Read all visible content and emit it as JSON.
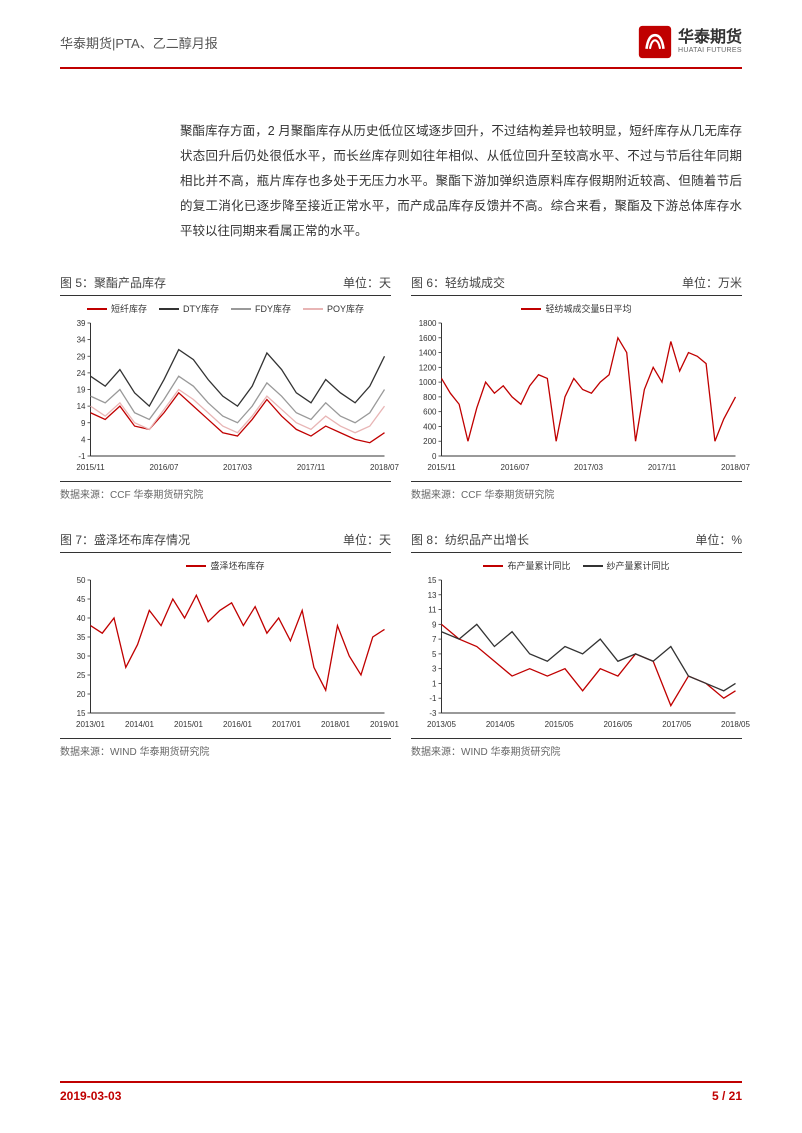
{
  "header": {
    "left": "华泰期货|PTA、乙二醇月报",
    "logo_cn": "华泰期货",
    "logo_en": "HUATAI FUTURES"
  },
  "paragraph": "聚酯库存方面，2 月聚酯库存从历史低位区域逐步回升，不过结构差异也较明显，短纤库存从几无库存状态回升后仍处很低水平，而长丝库存则如往年相似、从低位回升至较高水平、不过与节后往年同期相比并不高，瓶片库存也多处于无压力水平。聚酯下游加弹织造原料库存假期附近较高、但随着节后的复工消化已逐步降至接近正常水平，而产成品库存反馈并不高。综合来看，聚酯及下游总体库存水平较以往同期来看属正常的水平。",
  "charts": {
    "c5": {
      "title": "图 5：聚酯产品库存",
      "unit": "单位：天",
      "legend": [
        {
          "label": "短纤库存",
          "color": "#c00000"
        },
        {
          "label": "DTY库存",
          "color": "#333333"
        },
        {
          "label": "FDY库存",
          "color": "#999999"
        },
        {
          "label": "POY库存",
          "color": "#e8b5b5"
        }
      ],
      "yticks": [
        -1,
        4,
        9,
        14,
        19,
        24,
        29,
        34,
        39
      ],
      "xticks": [
        "2015/11",
        "2016/07",
        "2017/03",
        "2017/11",
        "2018/07"
      ],
      "xlim": [
        0,
        100
      ],
      "ylim": [
        -1,
        39
      ],
      "series": {
        "s0": [
          [
            0,
            12
          ],
          [
            5,
            10
          ],
          [
            10,
            14
          ],
          [
            15,
            8
          ],
          [
            20,
            7
          ],
          [
            25,
            12
          ],
          [
            30,
            18
          ],
          [
            35,
            14
          ],
          [
            40,
            10
          ],
          [
            45,
            6
          ],
          [
            50,
            5
          ],
          [
            55,
            10
          ],
          [
            60,
            16
          ],
          [
            65,
            11
          ],
          [
            70,
            7
          ],
          [
            75,
            5
          ],
          [
            80,
            8
          ],
          [
            85,
            6
          ],
          [
            90,
            4
          ],
          [
            95,
            3
          ],
          [
            100,
            6
          ]
        ],
        "s1": [
          [
            0,
            23
          ],
          [
            5,
            20
          ],
          [
            10,
            25
          ],
          [
            15,
            18
          ],
          [
            20,
            14
          ],
          [
            25,
            22
          ],
          [
            30,
            31
          ],
          [
            35,
            28
          ],
          [
            40,
            22
          ],
          [
            45,
            17
          ],
          [
            50,
            14
          ],
          [
            55,
            20
          ],
          [
            60,
            30
          ],
          [
            65,
            25
          ],
          [
            70,
            18
          ],
          [
            75,
            15
          ],
          [
            80,
            22
          ],
          [
            85,
            18
          ],
          [
            90,
            15
          ],
          [
            95,
            20
          ],
          [
            100,
            29
          ]
        ],
        "s2": [
          [
            0,
            17
          ],
          [
            5,
            15
          ],
          [
            10,
            19
          ],
          [
            15,
            12
          ],
          [
            20,
            10
          ],
          [
            25,
            16
          ],
          [
            30,
            23
          ],
          [
            35,
            20
          ],
          [
            40,
            15
          ],
          [
            45,
            11
          ],
          [
            50,
            9
          ],
          [
            55,
            14
          ],
          [
            60,
            21
          ],
          [
            65,
            17
          ],
          [
            70,
            12
          ],
          [
            75,
            10
          ],
          [
            80,
            15
          ],
          [
            85,
            11
          ],
          [
            90,
            9
          ],
          [
            95,
            12
          ],
          [
            100,
            19
          ]
        ],
        "s3": [
          [
            0,
            14
          ],
          [
            5,
            11
          ],
          [
            10,
            15
          ],
          [
            15,
            9
          ],
          [
            20,
            7
          ],
          [
            25,
            13
          ],
          [
            30,
            19
          ],
          [
            35,
            16
          ],
          [
            40,
            12
          ],
          [
            45,
            8
          ],
          [
            50,
            6
          ],
          [
            55,
            11
          ],
          [
            60,
            17
          ],
          [
            65,
            13
          ],
          [
            70,
            9
          ],
          [
            75,
            7
          ],
          [
            80,
            11
          ],
          [
            85,
            8
          ],
          [
            90,
            6
          ],
          [
            95,
            8
          ],
          [
            100,
            14
          ]
        ]
      },
      "source": "数据来源：CCF 华泰期货研究院"
    },
    "c6": {
      "title": "图 6：轻纺城成交",
      "unit": "单位：万米",
      "legend": [
        {
          "label": "轻纺城成交量5日平均",
          "color": "#c00000"
        }
      ],
      "yticks": [
        0,
        200,
        400,
        600,
        800,
        1000,
        1200,
        1400,
        1600,
        1800
      ],
      "xticks": [
        "2015/11",
        "2016/07",
        "2017/03",
        "2017/11",
        "2018/07"
      ],
      "xlim": [
        0,
        100
      ],
      "ylim": [
        0,
        1800
      ],
      "series": {
        "s0": [
          [
            0,
            1050
          ],
          [
            3,
            850
          ],
          [
            6,
            700
          ],
          [
            9,
            200
          ],
          [
            12,
            650
          ],
          [
            15,
            1000
          ],
          [
            18,
            850
          ],
          [
            21,
            950
          ],
          [
            24,
            800
          ],
          [
            27,
            700
          ],
          [
            30,
            950
          ],
          [
            33,
            1100
          ],
          [
            36,
            1050
          ],
          [
            39,
            200
          ],
          [
            42,
            800
          ],
          [
            45,
            1050
          ],
          [
            48,
            900
          ],
          [
            51,
            850
          ],
          [
            54,
            1000
          ],
          [
            57,
            1100
          ],
          [
            60,
            1600
          ],
          [
            63,
            1400
          ],
          [
            66,
            200
          ],
          [
            69,
            900
          ],
          [
            72,
            1200
          ],
          [
            75,
            1000
          ],
          [
            78,
            1550
          ],
          [
            81,
            1150
          ],
          [
            84,
            1400
          ],
          [
            87,
            1350
          ],
          [
            90,
            1250
          ],
          [
            93,
            200
          ],
          [
            96,
            500
          ],
          [
            100,
            800
          ]
        ]
      },
      "source": "数据来源：CCF 华泰期货研究院"
    },
    "c7": {
      "title": "图 7：盛泽坯布库存情况",
      "unit": "单位：天",
      "legend": [
        {
          "label": "盛泽坯布库存",
          "color": "#c00000"
        }
      ],
      "yticks": [
        15,
        20,
        25,
        30,
        35,
        40,
        45,
        50
      ],
      "xticks": [
        "2013/01",
        "2014/01",
        "2015/01",
        "2016/01",
        "2017/01",
        "2018/01",
        "2019/01"
      ],
      "xlim": [
        0,
        100
      ],
      "ylim": [
        15,
        50
      ],
      "series": {
        "s0": [
          [
            0,
            38
          ],
          [
            4,
            36
          ],
          [
            8,
            40
          ],
          [
            12,
            27
          ],
          [
            16,
            33
          ],
          [
            20,
            42
          ],
          [
            24,
            38
          ],
          [
            28,
            45
          ],
          [
            32,
            40
          ],
          [
            36,
            46
          ],
          [
            40,
            39
          ],
          [
            44,
            42
          ],
          [
            48,
            44
          ],
          [
            52,
            38
          ],
          [
            56,
            43
          ],
          [
            60,
            36
          ],
          [
            64,
            40
          ],
          [
            68,
            34
          ],
          [
            72,
            42
          ],
          [
            76,
            27
          ],
          [
            80,
            21
          ],
          [
            84,
            38
          ],
          [
            88,
            30
          ],
          [
            92,
            25
          ],
          [
            96,
            35
          ],
          [
            100,
            37
          ]
        ]
      },
      "source": "数据来源：WIND 华泰期货研究院"
    },
    "c8": {
      "title": "图 8：纺织品产出增长",
      "unit": "单位：%",
      "legend": [
        {
          "label": "布产量累计同比",
          "color": "#c00000"
        },
        {
          "label": "纱产量累计同比",
          "color": "#333333"
        }
      ],
      "yticks": [
        -3,
        -1,
        1,
        3,
        5,
        7,
        9,
        11,
        13,
        15
      ],
      "xticks": [
        "2013/05",
        "2014/05",
        "2015/05",
        "2016/05",
        "2017/05",
        "2018/05"
      ],
      "xlim": [
        0,
        100
      ],
      "ylim": [
        -3,
        15
      ],
      "series": {
        "s0": [
          [
            0,
            9
          ],
          [
            6,
            7
          ],
          [
            12,
            6
          ],
          [
            18,
            4
          ],
          [
            24,
            2
          ],
          [
            30,
            3
          ],
          [
            36,
            2
          ],
          [
            42,
            3
          ],
          [
            48,
            0
          ],
          [
            54,
            3
          ],
          [
            60,
            2
          ],
          [
            66,
            5
          ],
          [
            72,
            4
          ],
          [
            78,
            -2
          ],
          [
            84,
            2
          ],
          [
            90,
            1
          ],
          [
            96,
            -1
          ],
          [
            100,
            0
          ]
        ],
        "s1": [
          [
            0,
            8
          ],
          [
            6,
            7
          ],
          [
            12,
            9
          ],
          [
            18,
            6
          ],
          [
            24,
            8
          ],
          [
            30,
            5
          ],
          [
            36,
            4
          ],
          [
            42,
            6
          ],
          [
            48,
            5
          ],
          [
            54,
            7
          ],
          [
            60,
            4
          ],
          [
            66,
            5
          ],
          [
            72,
            4
          ],
          [
            78,
            6
          ],
          [
            84,
            2
          ],
          [
            90,
            1
          ],
          [
            96,
            0
          ],
          [
            100,
            1
          ]
        ]
      },
      "source": "数据来源：WIND 华泰期货研究院"
    }
  },
  "footer": {
    "date": "2019-03-03",
    "page": "5 / 21"
  },
  "colors": {
    "red": "#c00000",
    "axis": "#333333",
    "grid": "#e5e5e5"
  }
}
